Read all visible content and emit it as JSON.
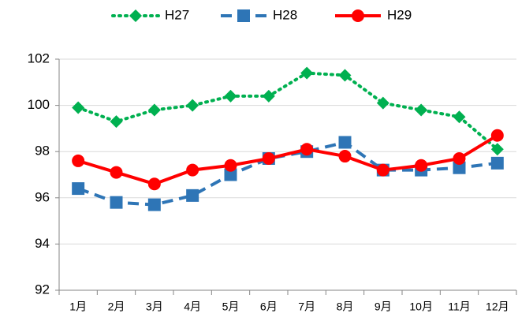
{
  "chart_data": {
    "type": "line",
    "categories": [
      "1月",
      "2月",
      "3月",
      "4月",
      "5月",
      "6月",
      "7月",
      "8月",
      "9月",
      "10月",
      "11月",
      "12月"
    ],
    "series": [
      {
        "name": "H27",
        "color": "#00b050",
        "marker": "diamond",
        "dash": "dotted",
        "values": [
          99.9,
          99.3,
          99.8,
          100.0,
          100.4,
          100.4,
          101.4,
          101.3,
          100.1,
          99.8,
          99.5,
          98.1
        ]
      },
      {
        "name": "H28",
        "color": "#2e75b6",
        "marker": "square",
        "dash": "dashed",
        "values": [
          96.4,
          95.8,
          95.7,
          96.1,
          97.0,
          97.7,
          98.0,
          98.4,
          97.2,
          97.2,
          97.3,
          97.5
        ]
      },
      {
        "name": "H29",
        "color": "#ff0000",
        "marker": "circle",
        "dash": "solid",
        "values": [
          97.6,
          97.1,
          96.6,
          97.2,
          97.4,
          97.7,
          98.1,
          97.8,
          97.2,
          97.4,
          97.7,
          98.7
        ]
      }
    ],
    "ylim": [
      92,
      102
    ],
    "yticks": [
      92,
      94,
      96,
      98,
      100,
      102
    ],
    "grid": true,
    "legend": "top"
  }
}
